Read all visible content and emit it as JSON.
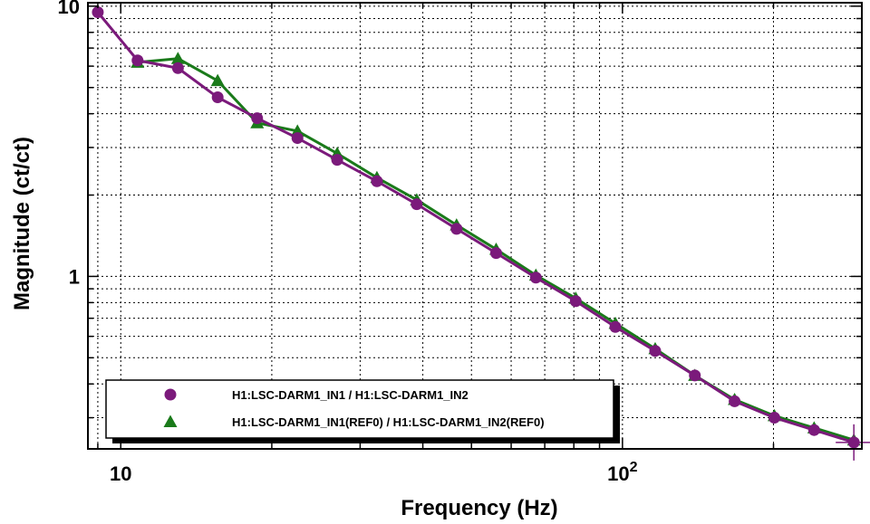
{
  "chart_data": {
    "type": "line",
    "xlabel": "Frequency (Hz)",
    "ylabel": "Magnitude (ct/ct)",
    "xscale": "log",
    "yscale": "log",
    "xlim": [
      8.6,
      300
    ],
    "ylim": [
      0.23,
      10.3
    ],
    "x_ticks": [
      {
        "value": 10,
        "base": "10",
        "exp": ""
      },
      {
        "value": 100,
        "base": "10",
        "exp": "2"
      }
    ],
    "y_ticks": [
      {
        "value": 10,
        "label": "10"
      },
      {
        "value": 1,
        "label": "1"
      }
    ],
    "grid": true,
    "legend_position": "bottom-left",
    "series": [
      {
        "name": "H1:LSC-DARM1_IN1 / H1:LSC-DARM1_IN2",
        "color": "#7b1a7b",
        "marker": "circle",
        "x": [
          9.0,
          10.8,
          13.0,
          15.6,
          18.7,
          22.5,
          27.0,
          32.4,
          38.9,
          46.7,
          56.0,
          67.2,
          80.7,
          96.8,
          116.2,
          139.4,
          167.3,
          200.8,
          241.0,
          289.2
        ],
        "y": [
          9.5,
          6.3,
          5.9,
          4.6,
          3.85,
          3.25,
          2.7,
          2.25,
          1.85,
          1.5,
          1.22,
          0.99,
          0.81,
          0.65,
          0.53,
          0.43,
          0.345,
          0.3,
          0.27,
          0.243
        ]
      },
      {
        "name": "H1:LSC-DARM1_IN1(REF0) / H1:LSC-DARM1_IN2(REF0)",
        "color": "#1a7a1a",
        "marker": "triangle",
        "x": [
          10.8,
          13.0,
          15.6,
          18.7,
          22.5,
          27.0,
          32.4,
          38.9,
          46.7,
          56.0,
          67.2,
          80.7,
          96.8,
          116.2,
          139.4,
          167.3,
          200.8,
          241.0,
          289.2
        ],
        "y": [
          6.2,
          6.4,
          5.3,
          3.7,
          3.45,
          2.85,
          2.32,
          1.92,
          1.55,
          1.26,
          1.01,
          0.83,
          0.67,
          0.54,
          0.43,
          0.35,
          0.305,
          0.275,
          0.248
        ]
      }
    ]
  }
}
